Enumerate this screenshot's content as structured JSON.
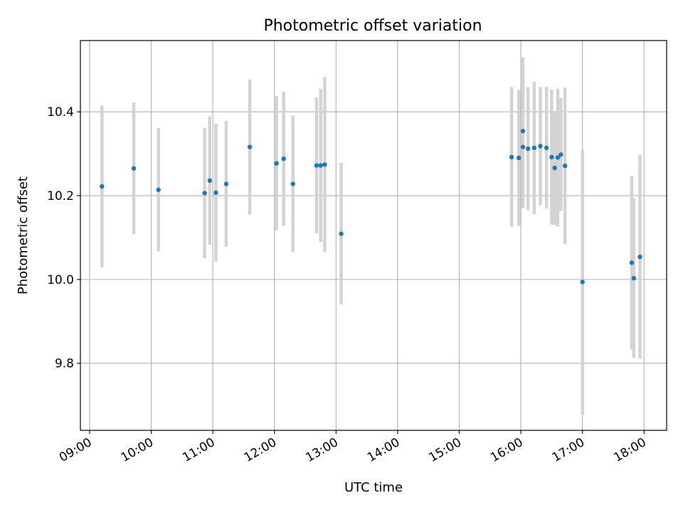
{
  "chart_data": {
    "type": "scatter",
    "title": "Photometric offset variation",
    "xlabel": "UTC time",
    "ylabel": "Photometric offset",
    "x_ticks": [
      "09:00",
      "10:00",
      "11:00",
      "12:00",
      "13:00",
      "14:00",
      "15:00",
      "16:00",
      "17:00",
      "18:00"
    ],
    "y_ticks": [
      "9.8",
      "10.0",
      "10.2",
      "10.4"
    ],
    "x_axis_format": "HH:MM",
    "xlim": [
      "08:51",
      "18:22"
    ],
    "ylim": [
      9.64,
      10.57
    ],
    "grid": true,
    "marker_color": "#1f77b4",
    "errorbar_color": "#d3d3d3",
    "series": [
      {
        "points": [
          {
            "x": "09:12",
            "y": 10.222,
            "err": 0.193
          },
          {
            "x": "09:43",
            "y": 10.265,
            "err": 0.157
          },
          {
            "x": "10:07",
            "y": 10.214,
            "err": 0.147
          },
          {
            "x": "10:52",
            "y": 10.206,
            "err": 0.155
          },
          {
            "x": "10:57",
            "y": 10.236,
            "err": 0.153
          },
          {
            "x": "11:03",
            "y": 10.207,
            "err": 0.165
          },
          {
            "x": "11:13",
            "y": 10.228,
            "err": 0.15
          },
          {
            "x": "11:36",
            "y": 10.316,
            "err": 0.161
          },
          {
            "x": "12:02",
            "y": 10.277,
            "err": 0.16
          },
          {
            "x": "12:09",
            "y": 10.288,
            "err": 0.16
          },
          {
            "x": "12:18",
            "y": 10.228,
            "err": 0.163
          },
          {
            "x": "12:41",
            "y": 10.272,
            "err": 0.162
          },
          {
            "x": "12:45",
            "y": 10.272,
            "err": 0.183
          },
          {
            "x": "12:49",
            "y": 10.274,
            "err": 0.209
          },
          {
            "x": "13:05",
            "y": 10.109,
            "err": 0.169
          },
          {
            "x": "15:51",
            "y": 10.292,
            "err": 0.167
          },
          {
            "x": "15:58",
            "y": 10.29,
            "err": 0.162
          },
          {
            "x": "16:02",
            "y": 10.354,
            "err": 0.176
          },
          {
            "x": "16:02",
            "y": 10.316,
            "err": 0.146
          },
          {
            "x": "16:07",
            "y": 10.312,
            "err": 0.147
          },
          {
            "x": "16:13",
            "y": 10.314,
            "err": 0.158
          },
          {
            "x": "16:19",
            "y": 10.318,
            "err": 0.141
          },
          {
            "x": "16:25",
            "y": 10.314,
            "err": 0.145
          },
          {
            "x": "16:30",
            "y": 10.292,
            "err": 0.161
          },
          {
            "x": "16:33",
            "y": 10.266,
            "err": 0.136
          },
          {
            "x": "16:36",
            "y": 10.291,
            "err": 0.164
          },
          {
            "x": "16:39",
            "y": 10.298,
            "err": 0.135
          },
          {
            "x": "16:43",
            "y": 10.271,
            "err": 0.187
          },
          {
            "x": "17:00",
            "y": 9.994,
            "err": 0.316
          },
          {
            "x": "17:48",
            "y": 10.04,
            "err": 0.207
          },
          {
            "x": "17:50",
            "y": 10.003,
            "err": 0.19
          },
          {
            "x": "17:56",
            "y": 10.054,
            "err": 0.243
          }
        ]
      }
    ]
  }
}
